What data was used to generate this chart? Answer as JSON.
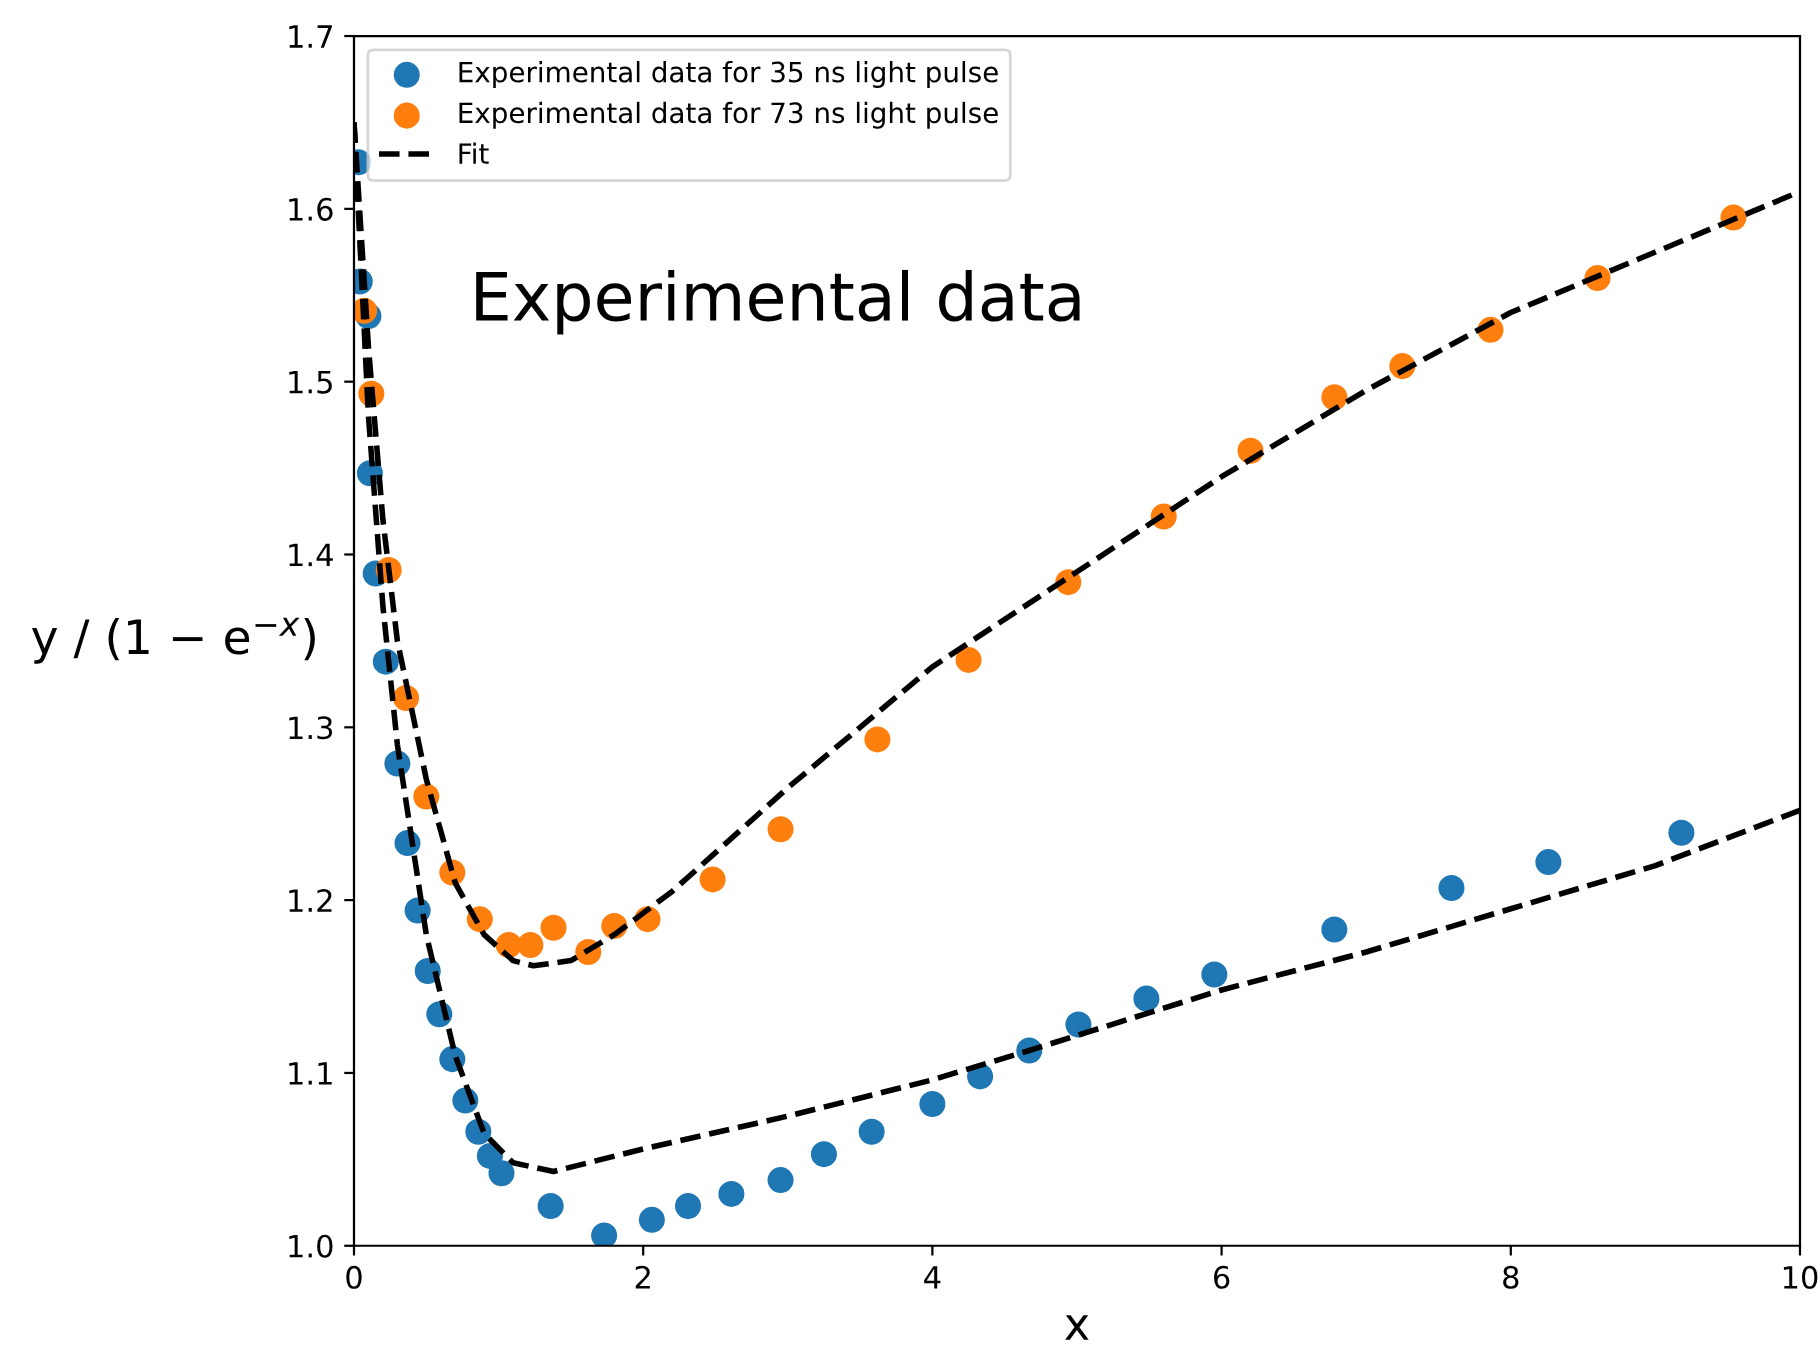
{
  "chart_data": {
    "type": "scatter",
    "xlabel": "x",
    "ylabel": "y / (1 − e$^{−x}$)",
    "annotations": [
      "Experimental data"
    ],
    "xlim": [
      0,
      10
    ],
    "ylim": [
      1.0,
      1.7
    ],
    "xticks": [
      0,
      2,
      4,
      6,
      8,
      10
    ],
    "yticks": [
      {
        "value": 1.0,
        "label": "1.0"
      },
      {
        "value": 1.1,
        "label": "1.1"
      },
      {
        "value": 1.2,
        "label": "1.2"
      },
      {
        "value": 1.3,
        "label": "1.3"
      },
      {
        "value": 1.4,
        "label": "1.4"
      },
      {
        "value": 1.5,
        "label": "1.5"
      },
      {
        "value": 1.6,
        "label": "1.6"
      },
      {
        "value": 1.7,
        "label": "1.7"
      }
    ],
    "grid": false,
    "legend": "top left",
    "marker": "circle",
    "series": [
      {
        "name": "Experimental data for 35 ns light pulse",
        "color": "#1f77b4",
        "x": [
          0.03,
          0.04,
          0.1,
          0.11,
          0.15,
          0.22,
          0.3,
          0.37,
          0.44,
          0.51,
          0.59,
          0.68,
          0.77,
          0.86,
          0.94,
          1.02,
          1.36,
          1.73,
          2.06,
          2.31,
          2.61,
          2.95,
          3.25,
          3.58,
          4.0,
          4.33,
          4.67,
          5.01,
          5.48,
          5.95,
          6.78,
          7.59,
          8.26,
          9.18
        ],
        "values": [
          1.627,
          1.558,
          1.538,
          1.447,
          1.389,
          1.338,
          1.279,
          1.233,
          1.194,
          1.159,
          1.134,
          1.108,
          1.084,
          1.066,
          1.052,
          1.042,
          1.023,
          1.006,
          1.015,
          1.023,
          1.03,
          1.038,
          1.053,
          1.066,
          1.082,
          1.098,
          1.113,
          1.128,
          1.143,
          1.157,
          1.183,
          1.207,
          1.222,
          1.239
        ]
      },
      {
        "name": "Experimental data for 73 ns light pulse",
        "color": "#ff7f0e",
        "x": [
          0.07,
          0.12,
          0.24,
          0.36,
          0.5,
          0.68,
          0.87,
          1.07,
          1.22,
          1.38,
          1.62,
          1.8,
          2.03,
          2.48,
          2.95,
          3.62,
          4.25,
          4.94,
          5.6,
          6.2,
          6.78,
          7.25,
          7.86,
          8.6,
          9.54
        ],
        "values": [
          1.541,
          1.493,
          1.391,
          1.317,
          1.26,
          1.216,
          1.189,
          1.174,
          1.174,
          1.184,
          1.17,
          1.185,
          1.189,
          1.212,
          1.241,
          1.293,
          1.339,
          1.384,
          1.422,
          1.46,
          1.491,
          1.509,
          1.53,
          1.56,
          1.595
        ]
      },
      {
        "name": "Fit",
        "type": "line",
        "line_style": "dashed",
        "marker": "none",
        "color": "#000000",
        "x": [
          0,
          0.1,
          0.2,
          0.3,
          0.5,
          0.7,
          0.9,
          1.1,
          1.24,
          1.5,
          1.8,
          2.2,
          2.6,
          3.0,
          3.5,
          4.0,
          5.0,
          6.0,
          7.0,
          8.0,
          9.0,
          10.0
        ],
        "values": [
          1.65,
          1.52,
          1.42,
          1.35,
          1.27,
          1.21,
          1.18,
          1.165,
          1.162,
          1.165,
          1.18,
          1.205,
          1.235,
          1.265,
          1.3,
          1.335,
          1.39,
          1.445,
          1.495,
          1.54,
          1.575,
          1.61
        ]
      },
      {
        "type": "line",
        "line_style": "dashed",
        "marker": "none",
        "color": "#000000",
        "x": [
          0,
          0.1,
          0.2,
          0.3,
          0.5,
          0.7,
          0.9,
          1.1,
          1.38,
          2.0,
          3.0,
          4.0,
          4.67,
          6.0,
          7.0,
          8.0,
          9.0,
          10.0
        ],
        "values": [
          1.65,
          1.48,
          1.37,
          1.29,
          1.18,
          1.11,
          1.065,
          1.048,
          1.043,
          1.056,
          1.075,
          1.096,
          1.113,
          1.148,
          1.17,
          1.195,
          1.22,
          1.252
        ]
      }
    ]
  }
}
